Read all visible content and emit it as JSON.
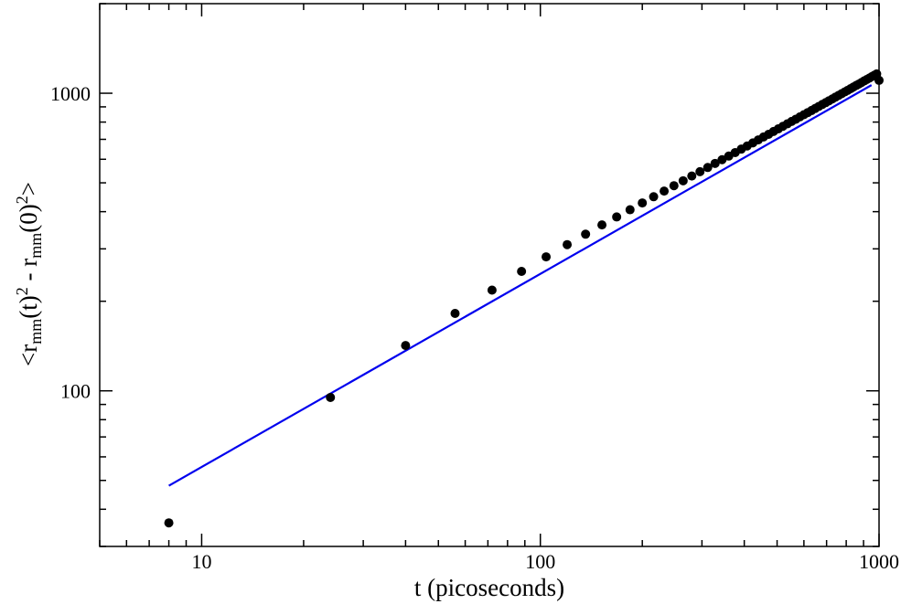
{
  "chart_data": {
    "type": "scatter",
    "xlabel": "t (picoseconds)",
    "ylabel": {
      "parts": [
        {
          "text": "<r",
          "style": "normal"
        },
        {
          "text": "mm",
          "style": "sub"
        },
        {
          "text": "(t)",
          "style": "normal"
        },
        {
          "text": "2",
          "style": "sup"
        },
        {
          "text": " - r",
          "style": "normal"
        },
        {
          "text": "mm",
          "style": "sub"
        },
        {
          "text": "(0)",
          "style": "normal"
        },
        {
          "text": "2",
          "style": "sup"
        },
        {
          "text": ">",
          "style": "normal"
        }
      ]
    },
    "xscale": "log",
    "yscale": "log",
    "xlim": [
      5,
      1000
    ],
    "ylim": [
      30,
      2000
    ],
    "x_tick_labels": [
      {
        "value": 10,
        "label": "10"
      },
      {
        "value": 100,
        "label": "100"
      },
      {
        "value": 1000,
        "label": "1000"
      }
    ],
    "y_tick_labels": [
      {
        "value": 100,
        "label": "100"
      },
      {
        "value": 1000,
        "label": "1000"
      }
    ],
    "grid": false,
    "legend": "none",
    "series": [
      {
        "kind": "points",
        "color": "#000000",
        "x": [
          8,
          24,
          40,
          56,
          72,
          88,
          104,
          120,
          136,
          152,
          168,
          184,
          200,
          216,
          232,
          248,
          264,
          280,
          296,
          312,
          328,
          344,
          360,
          376,
          392,
          408,
          424,
          440,
          456,
          472,
          488,
          504,
          520,
          536,
          552,
          568,
          584,
          600,
          616,
          632,
          648,
          664,
          680,
          696,
          712,
          728,
          744,
          760,
          776,
          792,
          808,
          824,
          840,
          856,
          872,
          888,
          904,
          920,
          936,
          952,
          968,
          984,
          1000
        ],
        "y": [
          36,
          95,
          142,
          182,
          218,
          252,
          282,
          310,
          336,
          361,
          384,
          406,
          428,
          449,
          469,
          489,
          508,
          527,
          545,
          563,
          581,
          598,
          615,
          632,
          649,
          665,
          681,
          697,
          713,
          728,
          744,
          759,
          774,
          789,
          804,
          818,
          833,
          847,
          861,
          875,
          889,
          903,
          917,
          930,
          944,
          957,
          971,
          984,
          997,
          1010,
          1023,
          1036,
          1049,
          1062,
          1074,
          1087,
          1100,
          1112,
          1124,
          1137,
          1149,
          1161,
          1105
        ]
      },
      {
        "kind": "line",
        "color": "#0000ee",
        "x": [
          8,
          950
        ],
        "y": [
          48,
          1065
        ]
      }
    ]
  }
}
